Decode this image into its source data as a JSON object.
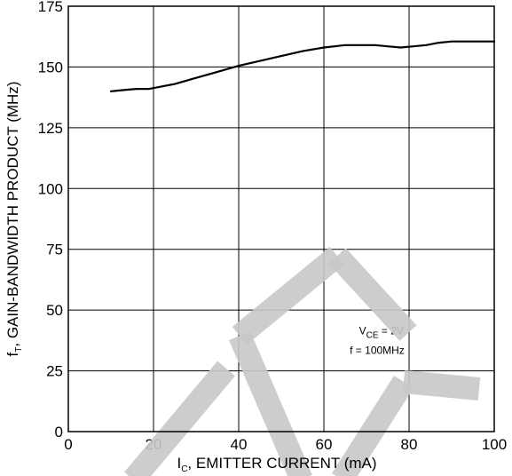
{
  "chart_data": {
    "type": "line",
    "xlabel": {
      "main": "I",
      "sub": "C",
      "rest": ", EMITTER CURRENT (mA)"
    },
    "ylabel": {
      "main": "f",
      "sub": "T",
      "rest": ", GAIN-BANDWIDTH PRODUCT (MHz)"
    },
    "xlim": [
      0,
      100
    ],
    "ylim": [
      0,
      175
    ],
    "xticks": [
      0,
      20,
      40,
      60,
      80,
      100
    ],
    "yticks": [
      0,
      25,
      50,
      75,
      100,
      125,
      150,
      175
    ],
    "xtick_labels": [
      "0",
      "20",
      "40",
      "60",
      "80",
      "100"
    ],
    "ytick_labels": [
      "0",
      "25",
      "50",
      "75",
      "100",
      "125",
      "150",
      "175"
    ],
    "grid": true,
    "series": [
      {
        "x": [
          10,
          13,
          16,
          19,
          22,
          25,
          30,
          35,
          40,
          45,
          50,
          55,
          60,
          65,
          70,
          72,
          75,
          78,
          81,
          84,
          87,
          90,
          95,
          100
        ],
        "y": [
          140,
          140.5,
          141,
          141,
          142,
          143,
          145.5,
          148,
          150.5,
          152.5,
          154.5,
          156.5,
          158,
          159,
          159,
          159,
          158.5,
          158,
          158.5,
          159,
          160,
          160.5,
          160.5,
          160.5
        ]
      }
    ],
    "annotation": {
      "line1_main": "V",
      "line1_sub": "CE",
      "line1_rest": " = 2V",
      "line2": "f = 100MHz"
    },
    "watermark_color": "#c8c8c8"
  }
}
